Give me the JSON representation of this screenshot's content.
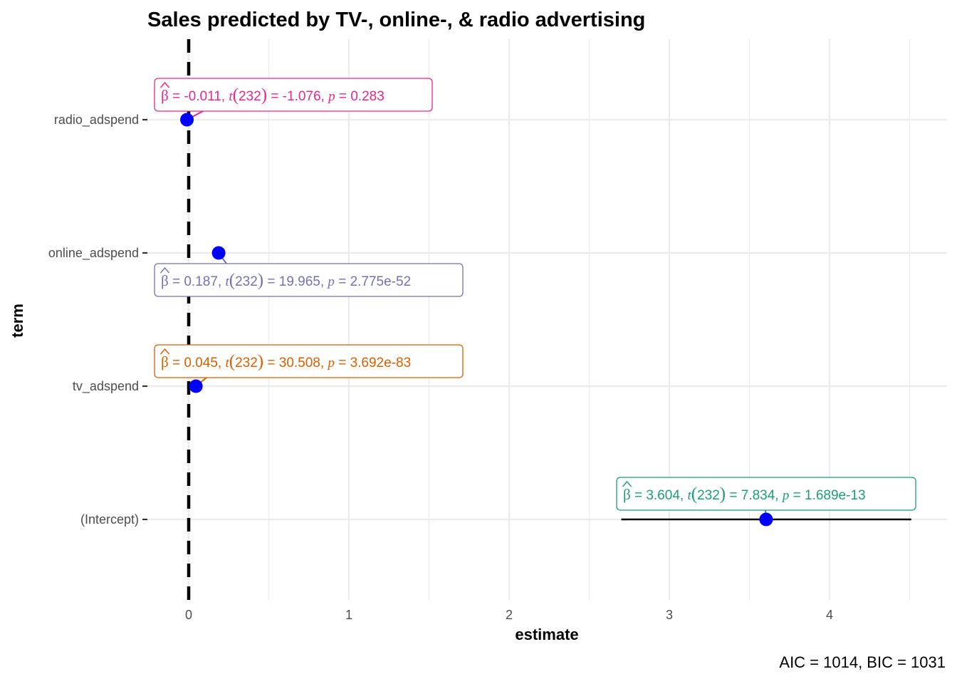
{
  "chart_data": {
    "type": "scatter",
    "title": "Sales predicted by TV-, online-, & radio advertising",
    "xlabel": "estimate",
    "ylabel": "term",
    "xlim": [
      -0.05,
      4.7
    ],
    "x_ticks": [
      "0",
      "1",
      "2",
      "3",
      "4"
    ],
    "x_tick_values": [
      0,
      1,
      2,
      3,
      4
    ],
    "grid": true,
    "reference_line": 0,
    "caption": "AIC = 1014, BIC = 1031",
    "terms": [
      {
        "term": "(Intercept)",
        "estimate": 3.604,
        "conf_low": 2.7,
        "conf_high": 4.51,
        "color": "#1B9E77",
        "label": {
          "beta": "3.604",
          "df": "232",
          "t": "7.834",
          "p": "1.689e-13"
        }
      },
      {
        "term": "tv_adspend",
        "estimate": 0.045,
        "conf_low": 0.042,
        "conf_high": 0.048,
        "color": "#D95F02",
        "label": {
          "beta": "0.045",
          "df": "232",
          "t": "30.508",
          "p": "3.692e-83"
        }
      },
      {
        "term": "online_adspend",
        "estimate": 0.187,
        "conf_low": 0.169,
        "conf_high": 0.205,
        "color": "#7570B3",
        "label": {
          "beta": "0.187",
          "df": "232",
          "t": "19.965",
          "p": "2.775e-52"
        }
      },
      {
        "term": "radio_adspend",
        "estimate": -0.011,
        "conf_low": -0.031,
        "conf_high": 0.009,
        "color": "#E7298A",
        "label": {
          "beta": "-0.011",
          "df": "232",
          "t": "-1.076",
          "p": "0.283"
        }
      }
    ],
    "point_color": "#0000FF"
  }
}
